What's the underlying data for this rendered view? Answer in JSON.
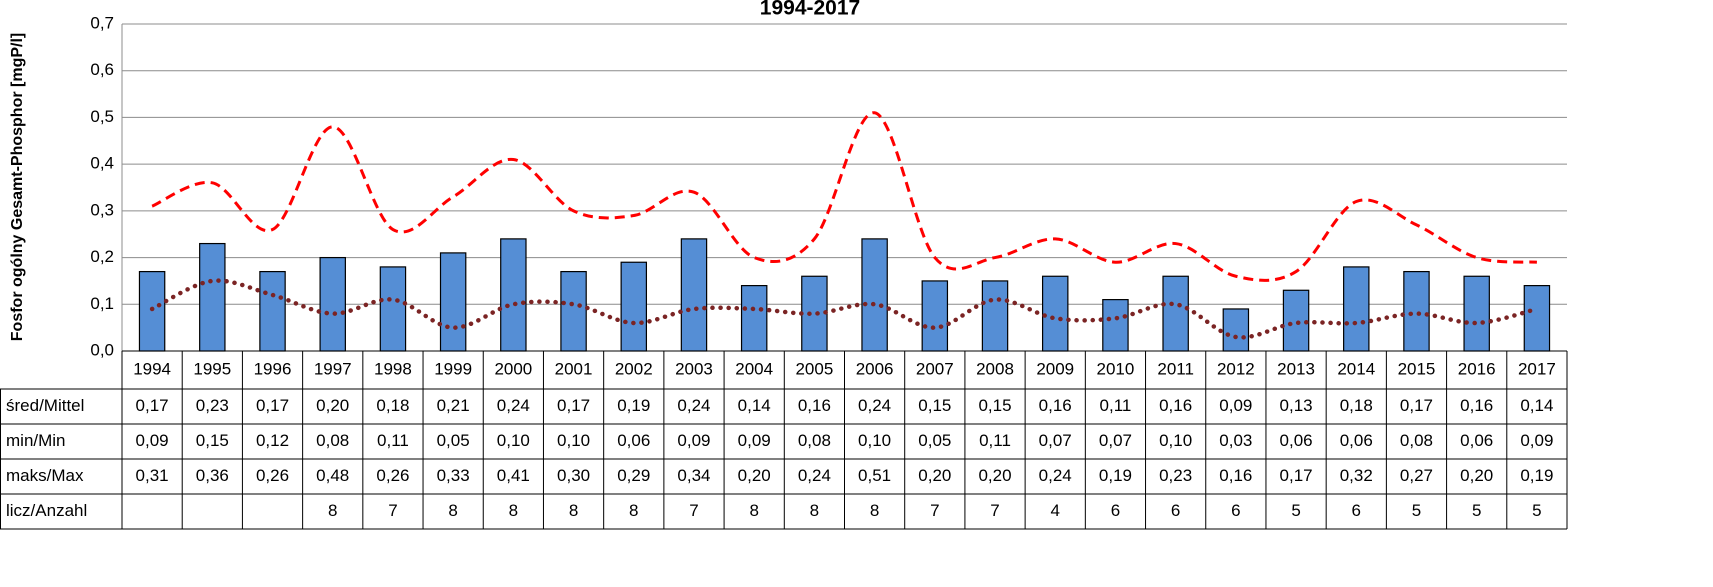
{
  "chart_data": {
    "type": "bar_line_table",
    "title": "1994-2017",
    "y_label": "Fosfor ogólny Gesamt-Phosphor [mgP/l]",
    "categories": [
      "1994",
      "1995",
      "1996",
      "1997",
      "1998",
      "1999",
      "2000",
      "2001",
      "2002",
      "2003",
      "2004",
      "2005",
      "2006",
      "2007",
      "2008",
      "2009",
      "2010",
      "2011",
      "2012",
      "2013",
      "2014",
      "2015",
      "2016",
      "2017"
    ],
    "ylim": [
      0,
      0.7
    ],
    "yticks": [
      {
        "value": 0,
        "label": "0,0"
      },
      {
        "value": 0.1,
        "label": "0,1"
      },
      {
        "value": 0.2,
        "label": "0,2"
      },
      {
        "value": 0.3,
        "label": "0,3"
      },
      {
        "value": 0.4,
        "label": "0,4"
      },
      {
        "value": 0.5,
        "label": "0,5"
      },
      {
        "value": 0.6,
        "label": "0,6"
      },
      {
        "value": 0.7,
        "label": "0,7"
      }
    ],
    "grid": true,
    "series": [
      {
        "name": "śred/Mittel",
        "kind": "bar",
        "color": "#558ed5",
        "values": [
          0.17,
          0.23,
          0.17,
          0.2,
          0.18,
          0.21,
          0.24,
          0.17,
          0.19,
          0.24,
          0.14,
          0.16,
          0.24,
          0.15,
          0.15,
          0.16,
          0.11,
          0.16,
          0.09,
          0.13,
          0.18,
          0.17,
          0.16,
          0.14
        ],
        "value_labels": [
          "0,17",
          "0,23",
          "0,17",
          "0,20",
          "0,18",
          "0,21",
          "0,24",
          "0,17",
          "0,19",
          "0,24",
          "0,14",
          "0,16",
          "0,24",
          "0,15",
          "0,15",
          "0,16",
          "0,11",
          "0,16",
          "0,09",
          "0,13",
          "0,18",
          "0,17",
          "0,16",
          "0,14"
        ]
      },
      {
        "name": "min/Min",
        "kind": "dotted",
        "color": "#7b2424",
        "values": [
          0.09,
          0.15,
          0.12,
          0.08,
          0.11,
          0.05,
          0.1,
          0.1,
          0.06,
          0.09,
          0.09,
          0.08,
          0.1,
          0.05,
          0.11,
          0.07,
          0.07,
          0.1,
          0.03,
          0.06,
          0.06,
          0.08,
          0.06,
          0.09
        ],
        "value_labels": [
          "0,09",
          "0,15",
          "0,12",
          "0,08",
          "0,11",
          "0,05",
          "0,10",
          "0,10",
          "0,06",
          "0,09",
          "0,09",
          "0,08",
          "0,10",
          "0,05",
          "0,11",
          "0,07",
          "0,07",
          "0,10",
          "0,03",
          "0,06",
          "0,06",
          "0,08",
          "0,06",
          "0,09"
        ]
      },
      {
        "name": "maks/Max",
        "kind": "dashed",
        "color": "#ff0000",
        "values": [
          0.31,
          0.36,
          0.26,
          0.48,
          0.26,
          0.33,
          0.41,
          0.3,
          0.29,
          0.34,
          0.2,
          0.24,
          0.51,
          0.2,
          0.2,
          0.24,
          0.19,
          0.23,
          0.16,
          0.17,
          0.32,
          0.27,
          0.2,
          0.19
        ],
        "value_labels": [
          "0,31",
          "0,36",
          "0,26",
          "0,48",
          "0,26",
          "0,33",
          "0,41",
          "0,30",
          "0,29",
          "0,34",
          "0,20",
          "0,24",
          "0,51",
          "0,20",
          "0,20",
          "0,24",
          "0,19",
          "0,23",
          "0,16",
          "0,17",
          "0,32",
          "0,27",
          "0,20",
          "0,19"
        ]
      }
    ],
    "count_row": {
      "name": "licz/Anzahl",
      "values": [
        null,
        null,
        null,
        8,
        7,
        8,
        8,
        8,
        8,
        7,
        8,
        8,
        8,
        7,
        7,
        4,
        6,
        6,
        6,
        5,
        6,
        5,
        5,
        5
      ]
    }
  }
}
